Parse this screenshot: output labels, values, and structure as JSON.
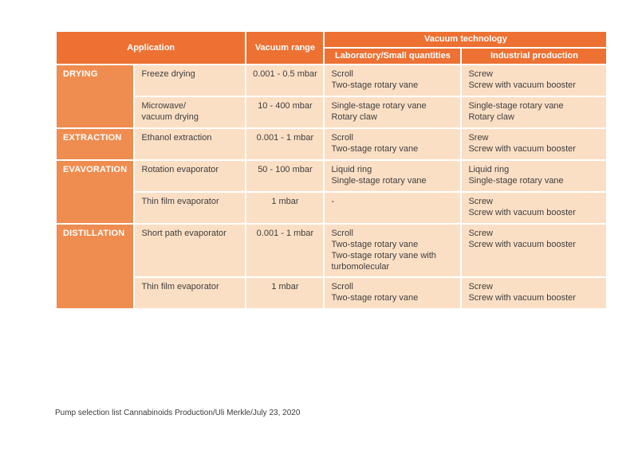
{
  "colors": {
    "header-bg": "#EC7133",
    "category-bg": "#EF8C4F",
    "cell-bg": "#FBDFC5",
    "header-text": "#FFFFFF",
    "body-text": "#3E3E3D",
    "footer-text": "#3A3A3A"
  },
  "table": {
    "headers": {
      "application": "Application",
      "vacuum_range": "Vacuum range",
      "vacuum_technology": "Vacuum technology",
      "laboratory": "Laboratory/Small quantities",
      "industrial": "Industrial production"
    },
    "rows": [
      {
        "category": "DRYING",
        "application": "Freeze drying",
        "range": "0.001 - 0.5 mbar",
        "lab": "Scroll\nTwo-stage rotary vane",
        "industrial": "Screw\nScrew with vacuum booster"
      },
      {
        "application": "Microwave/\nvacuum drying",
        "range": "10 - 400 mbar",
        "lab": "Single-stage rotary vane\nRotary claw",
        "industrial": "Single-stage rotary vane\nRotary claw"
      },
      {
        "category": "EXTRACTION",
        "application": "Ethanol extraction",
        "range": "0.001 - 1 mbar",
        "lab": "Scroll\nTwo-stage rotary vane",
        "industrial": "Srew\nScrew with vacuum booster"
      },
      {
        "category": "EVAVORATION",
        "application": "Rotation evaporator",
        "range": "50 - 100 mbar",
        "lab": "Liquid ring\nSingle-stage rotary vane",
        "industrial": "Liquid ring\nSingle-stage rotary vane"
      },
      {
        "application": "Thin film evaporator",
        "range": "1 mbar",
        "lab": "-",
        "industrial": "Screw\nScrew with vacuum booster"
      },
      {
        "category": "DISTILLATION",
        "application": "Short path evaporator",
        "range": "0.001 - 1 mbar",
        "lab": "Scroll\nTwo-stage rotary vane\nTwo-stage rotary vane with\nturbomolecular",
        "industrial": "Screw\nScrew with vacuum booster"
      },
      {
        "application": "Thin film evaporator",
        "range": "1 mbar",
        "lab": "Scroll\nTwo-stage rotary vane",
        "industrial": "Screw\nScrew with vacuum booster"
      }
    ]
  },
  "footer": {
    "caption": "Pump selection list Cannabinoids Production/Uli Merkle/July 23, 2020"
  }
}
